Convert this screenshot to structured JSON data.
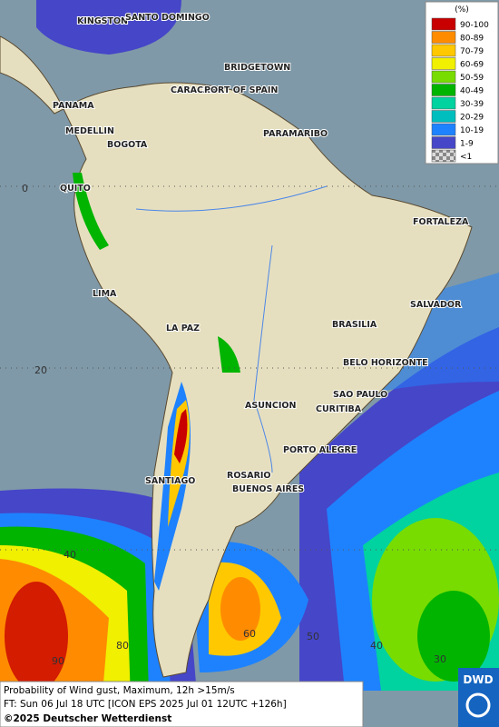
{
  "legend": {
    "unit": "(%)",
    "entries": [
      {
        "label": "90-100",
        "color": "#c80000"
      },
      {
        "label": "80-89",
        "color": "#ff8c00"
      },
      {
        "label": "70-79",
        "color": "#ffc800"
      },
      {
        "label": "60-69",
        "color": "#f0f000"
      },
      {
        "label": "50-59",
        "color": "#78dc00"
      },
      {
        "label": "40-49",
        "color": "#00b400"
      },
      {
        "label": "30-39",
        "color": "#00d2a0"
      },
      {
        "label": "20-29",
        "color": "#00bebe"
      },
      {
        "label": "10-19",
        "color": "#1e82ff"
      },
      {
        "label": "1-9",
        "color": "#4646c8"
      },
      {
        "label": "<1",
        "color": "#aaaaaa"
      }
    ]
  },
  "cities": [
    "KINGSTON",
    "SANTO DOMINGO",
    "BRIDGETOWN",
    "CARACAS",
    "PORT OF SPAIN",
    "PANAMA",
    "MEDELLIN",
    "BOGOTA",
    "PARAMARIBO",
    "QUITO",
    "FORTALEZA",
    "LIMA",
    "SALVADOR",
    "LA PAZ",
    "BRASILIA",
    "BELO HORIZONTE",
    "SAO PAULO",
    "ASUNCION",
    "CURITIBA",
    "PORTO ALEGRE",
    "ROSARIO",
    "BUENOS AIRES",
    "SANTIAGO"
  ],
  "grid_labels": [
    0,
    20,
    40,
    90,
    80,
    60,
    50,
    40,
    30
  ],
  "footer": {
    "line1": "Probability of Wind gust, Maximum, 12h >15m/s",
    "line2": "FT: Sun 06 Jul 18 UTC [ICON EPS 2025 Jul 01 12UTC +126h]",
    "line3": "©2025 Deutscher Wetterdienst"
  },
  "logo": "DWD"
}
